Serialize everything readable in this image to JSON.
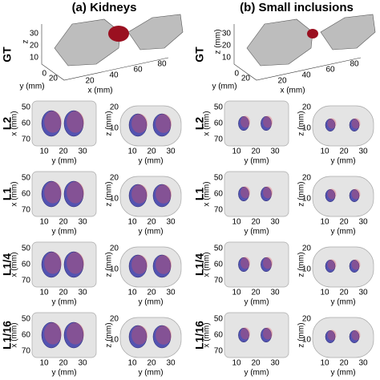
{
  "panels": [
    {
      "title": "(a) Kidneys",
      "gt": {
        "label": "GT",
        "z_label": "z",
        "z_ticks": [
          "30",
          "20",
          "10"
        ],
        "y_label": "y (mm)",
        "y_ticks": [
          "0",
          "20"
        ],
        "x_label": "x (mm)",
        "x_ticks": [
          "20",
          "40",
          "60",
          "80"
        ]
      },
      "rows": [
        {
          "label": "L2",
          "views": [
            {
              "ylabel": "x (mm)",
              "yticks": [
                "50",
                "60",
                "70"
              ],
              "xlabel": "y (mm)",
              "xticks": [
                "10",
                "20",
                "30"
              ]
            },
            {
              "ylabel": "z (mm)",
              "yticks": [
                "20",
                "10"
              ],
              "xlabel": "y (mm)",
              "xticks": [
                "10",
                "20",
                "30"
              ]
            }
          ]
        },
        {
          "label": "L1",
          "views": [
            {
              "ylabel": "x (mm)",
              "yticks": [
                "50",
                "60",
                "70"
              ],
              "xlabel": "y (mm)",
              "xticks": [
                "10",
                "20",
                "30"
              ]
            },
            {
              "ylabel": "z (mm)",
              "yticks": [
                "20",
                "10"
              ],
              "xlabel": "y (mm)",
              "xticks": [
                "10",
                "20",
                "30"
              ]
            }
          ]
        },
        {
          "label": "L1/4",
          "views": [
            {
              "ylabel": "x (mm)",
              "yticks": [
                "50",
                "60",
                "70"
              ],
              "xlabel": "y (mm)",
              "xticks": [
                "10",
                "20",
                "30"
              ]
            },
            {
              "ylabel": "z (mm)",
              "yticks": [
                "20",
                "10"
              ],
              "xlabel": "y (mm)",
              "xticks": [
                "10",
                "20",
                "30"
              ]
            }
          ]
        },
        {
          "label": "L1/16",
          "views": [
            {
              "ylabel": "x (mm)",
              "yticks": [
                "50",
                "60",
                "70"
              ],
              "xlabel": "y (mm)",
              "xticks": [
                "10",
                "20",
                "30"
              ]
            },
            {
              "ylabel": "z (mm)",
              "yticks": [
                "20",
                "10"
              ],
              "xlabel": "y (mm)",
              "xticks": [
                "10",
                "20",
                "30"
              ]
            }
          ]
        }
      ]
    },
    {
      "title": "(b) Small inclusions",
      "gt": {
        "label": "GT",
        "z_label": "z (mm)",
        "z_ticks": [
          "30",
          "20",
          "10"
        ],
        "y_label": "y (mm)",
        "y_ticks": [
          "0",
          "20"
        ],
        "x_label": "x (mm)",
        "x_ticks": [
          "20",
          "40",
          "60",
          "80"
        ]
      },
      "rows": [
        {
          "label": "L2",
          "views": [
            {
              "ylabel": "x (mm)",
              "yticks": [
                "50",
                "60",
                "70"
              ],
              "xlabel": "y (mm)",
              "xticks": [
                "10",
                "20",
                "30"
              ]
            },
            {
              "ylabel": "z (mm)",
              "yticks": [
                "20",
                "10"
              ],
              "xlabel": "y (mm)",
              "xticks": [
                "10",
                "20",
                "30"
              ]
            }
          ]
        },
        {
          "label": "L1",
          "views": [
            {
              "ylabel": "x (mm)",
              "yticks": [
                "50",
                "60",
                "70"
              ],
              "xlabel": "y (mm)",
              "xticks": [
                "10",
                "20",
                "30"
              ]
            },
            {
              "ylabel": "z (mm)",
              "yticks": [
                "20",
                "10"
              ],
              "xlabel": "y (mm)",
              "xticks": [
                "10",
                "20",
                "30"
              ]
            }
          ]
        },
        {
          "label": "L1/4",
          "views": [
            {
              "ylabel": "x (mm)",
              "yticks": [
                "50",
                "60",
                "70"
              ],
              "xlabel": "y (mm)",
              "xticks": [
                "10",
                "20",
                "30"
              ]
            },
            {
              "ylabel": "z (mm)",
              "yticks": [
                "20",
                "10"
              ],
              "xlabel": "y (mm)",
              "xticks": [
                "10",
                "20",
                "30"
              ]
            }
          ]
        },
        {
          "label": "L1/16",
          "views": [
            {
              "ylabel": "x (mm)",
              "yticks": [
                "50",
                "60",
                "70"
              ],
              "xlabel": "y (mm)",
              "xticks": [
                "10",
                "20",
                "30"
              ]
            },
            {
              "ylabel": "z (mm)",
              "yticks": [
                "20",
                "10"
              ],
              "xlabel": "y (mm)",
              "xticks": [
                "10",
                "20",
                "30"
              ]
            }
          ]
        }
      ]
    }
  ]
}
